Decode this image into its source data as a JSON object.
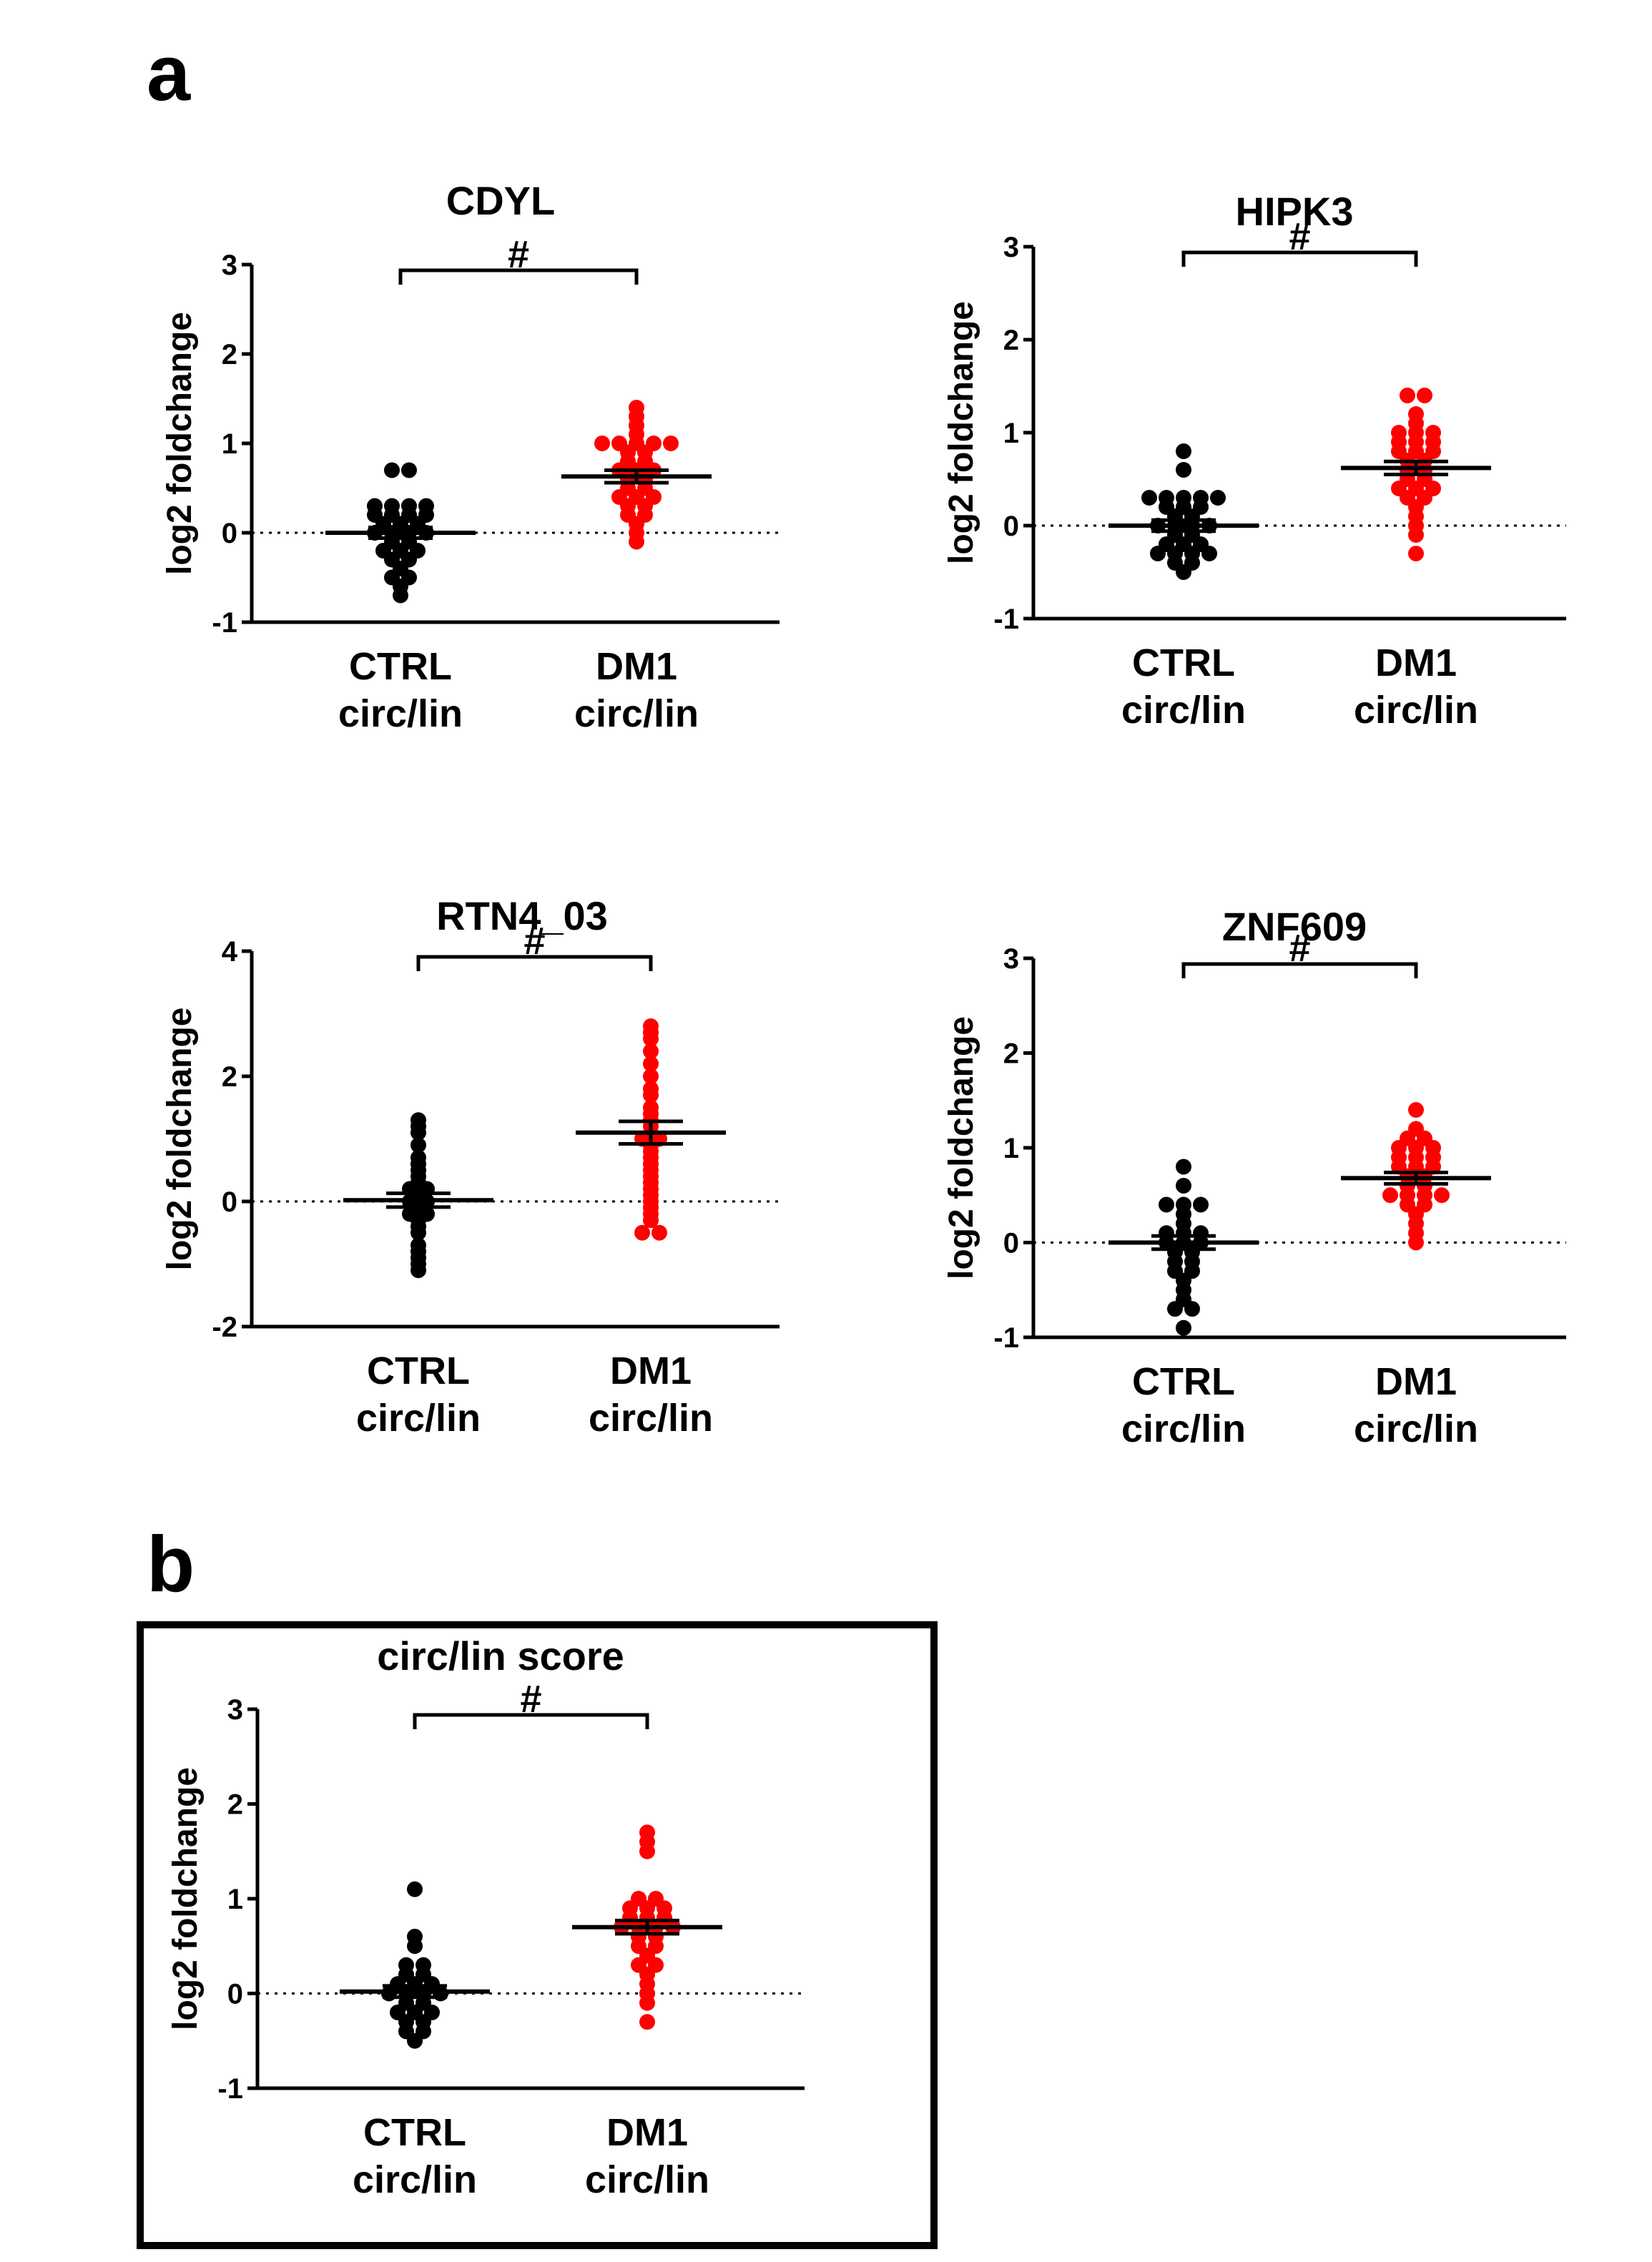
{
  "panel_labels": {
    "a": "a",
    "b": "b"
  },
  "colors": {
    "ctrl": "#000000",
    "dm1": "#ff0000",
    "axis": "#000000"
  },
  "chart_data": [
    {
      "type": "scatter",
      "title": "CDYL",
      "ylabel": "log2 foldchange",
      "ylim": [
        -1,
        3
      ],
      "yticks": [
        -1,
        0,
        1,
        2,
        3
      ],
      "categories": [
        [
          "CTRL",
          "circ/lin"
        ],
        [
          "DM1",
          "circ/lin"
        ]
      ],
      "significance": "#",
      "series": [
        {
          "name": "CTRL circ/lin",
          "color": "#000000",
          "mean": 0.0,
          "sem": 0.06,
          "values": [
            0.7,
            0.7,
            0.3,
            0.3,
            0.3,
            0.3,
            0.2,
            0.2,
            0.2,
            0.2,
            0.1,
            0.1,
            0.1,
            0.0,
            0.0,
            0.0,
            0.0,
            -0.1,
            -0.1,
            -0.2,
            -0.2,
            -0.2,
            -0.3,
            -0.3,
            -0.4,
            -0.5,
            -0.5,
            -0.6,
            -0.7
          ]
        },
        {
          "name": "DM1 circ/lin",
          "color": "#ff0000",
          "mean": 0.63,
          "sem": 0.07,
          "values": [
            1.4,
            1.3,
            1.2,
            1.1,
            1.0,
            1.0,
            1.0,
            1.0,
            1.0,
            0.9,
            0.9,
            0.8,
            0.8,
            0.7,
            0.7,
            0.7,
            0.6,
            0.6,
            0.5,
            0.5,
            0.4,
            0.4,
            0.4,
            0.3,
            0.3,
            0.2,
            0.2,
            0.1,
            0.0,
            -0.1
          ]
        }
      ]
    },
    {
      "type": "scatter",
      "title": "HIPK3",
      "ylabel": "log2 foldchange",
      "ylim": [
        -1,
        3
      ],
      "yticks": [
        -1,
        0,
        1,
        2,
        3
      ],
      "categories": [
        [
          "CTRL",
          "circ/lin"
        ],
        [
          "DM1",
          "circ/lin"
        ]
      ],
      "significance": "#",
      "series": [
        {
          "name": "CTRL circ/lin",
          "color": "#000000",
          "mean": 0.0,
          "sem": 0.06,
          "values": [
            0.8,
            0.6,
            0.3,
            0.3,
            0.3,
            0.3,
            0.3,
            0.2,
            0.2,
            0.2,
            0.1,
            0.1,
            0.0,
            0.0,
            0.0,
            0.0,
            -0.1,
            -0.1,
            -0.2,
            -0.2,
            -0.2,
            -0.3,
            -0.3,
            -0.3,
            -0.3,
            -0.4,
            -0.4,
            -0.5
          ]
        },
        {
          "name": "DM1 circ/lin",
          "color": "#ff0000",
          "mean": 0.62,
          "sem": 0.07,
          "values": [
            1.4,
            1.4,
            1.2,
            1.1,
            1.0,
            1.0,
            1.0,
            0.9,
            0.9,
            0.9,
            0.8,
            0.8,
            0.8,
            0.7,
            0.7,
            0.6,
            0.6,
            0.5,
            0.5,
            0.4,
            0.4,
            0.4,
            0.3,
            0.3,
            0.2,
            0.1,
            0.0,
            -0.1,
            -0.3
          ]
        }
      ]
    },
    {
      "type": "scatter",
      "title": "RTN4_03",
      "ylabel": "log2 foldchange",
      "ylim": [
        -2,
        4
      ],
      "yticks": [
        -2,
        0,
        2,
        4
      ],
      "categories": [
        [
          "CTRL",
          "circ/lin"
        ],
        [
          "DM1",
          "circ/lin"
        ]
      ],
      "significance": "#",
      "series": [
        {
          "name": "CTRL circ/lin",
          "color": "#000000",
          "mean": 0.02,
          "sem": 0.11,
          "values": [
            1.3,
            1.2,
            1.1,
            0.9,
            0.7,
            0.6,
            0.5,
            0.4,
            0.3,
            0.2,
            0.2,
            0.1,
            0.0,
            0.0,
            -0.1,
            -0.2,
            -0.2,
            -0.3,
            -0.4,
            -0.5,
            -0.7,
            -0.8,
            -0.9,
            -1.0,
            -1.1
          ]
        },
        {
          "name": "DM1 circ/lin",
          "color": "#ff0000",
          "mean": 1.1,
          "sem": 0.18,
          "values": [
            2.8,
            2.7,
            2.6,
            2.4,
            2.2,
            2.0,
            1.8,
            1.7,
            1.5,
            1.4,
            1.3,
            1.2,
            1.0,
            1.0,
            0.9,
            0.8,
            0.7,
            0.6,
            0.5,
            0.4,
            0.3,
            0.2,
            0.1,
            0.0,
            -0.1,
            -0.2,
            -0.3,
            -0.5,
            -0.5
          ]
        }
      ]
    },
    {
      "type": "scatter",
      "title": "ZNF609",
      "ylabel": "log2 foldchange",
      "ylim": [
        -1,
        3
      ],
      "yticks": [
        -1,
        0,
        1,
        2,
        3
      ],
      "categories": [
        [
          "CTRL",
          "circ/lin"
        ],
        [
          "DM1",
          "circ/lin"
        ]
      ],
      "significance": "#",
      "series": [
        {
          "name": "CTRL circ/lin",
          "color": "#000000",
          "mean": 0.0,
          "sem": 0.07,
          "values": [
            0.8,
            0.6,
            0.4,
            0.4,
            0.4,
            0.3,
            0.2,
            0.1,
            0.1,
            0.1,
            0.0,
            0.0,
            0.0,
            -0.1,
            -0.1,
            -0.2,
            -0.2,
            -0.3,
            -0.3,
            -0.4,
            -0.5,
            -0.6,
            -0.7,
            -0.7,
            -0.9
          ]
        },
        {
          "name": "DM1 circ/lin",
          "color": "#ff0000",
          "mean": 0.68,
          "sem": 0.06,
          "values": [
            1.4,
            1.2,
            1.1,
            1.1,
            1.0,
            1.0,
            1.0,
            0.9,
            0.9,
            0.9,
            0.8,
            0.8,
            0.8,
            0.7,
            0.7,
            0.6,
            0.6,
            0.5,
            0.5,
            0.5,
            0.5,
            0.4,
            0.4,
            0.3,
            0.2,
            0.1,
            0.0
          ]
        }
      ]
    },
    {
      "type": "scatter",
      "title": "circ/lin score",
      "ylabel": "log2 foldchange",
      "ylim": [
        -1,
        3
      ],
      "yticks": [
        -1,
        0,
        1,
        2,
        3
      ],
      "categories": [
        [
          "CTRL",
          "circ/lin"
        ],
        [
          "DM1",
          "circ/lin"
        ]
      ],
      "significance": "#",
      "series": [
        {
          "name": "CTRL circ/lin",
          "color": "#000000",
          "mean": 0.02,
          "sem": 0.06,
          "values": [
            1.1,
            0.6,
            0.5,
            0.3,
            0.3,
            0.2,
            0.2,
            0.1,
            0.1,
            0.1,
            0.0,
            0.0,
            0.0,
            0.0,
            -0.1,
            -0.1,
            -0.2,
            -0.2,
            -0.2,
            -0.3,
            -0.3,
            -0.4,
            -0.4,
            -0.5
          ]
        },
        {
          "name": "DM1 circ/lin",
          "color": "#ff0000",
          "mean": 0.7,
          "sem": 0.07,
          "values": [
            1.7,
            1.6,
            1.5,
            1.0,
            1.0,
            0.9,
            0.9,
            0.9,
            0.8,
            0.8,
            0.8,
            0.7,
            0.7,
            0.7,
            0.7,
            0.6,
            0.6,
            0.5,
            0.5,
            0.4,
            0.3,
            0.3,
            0.2,
            0.1,
            0.0,
            -0.1,
            -0.3
          ]
        }
      ]
    }
  ]
}
